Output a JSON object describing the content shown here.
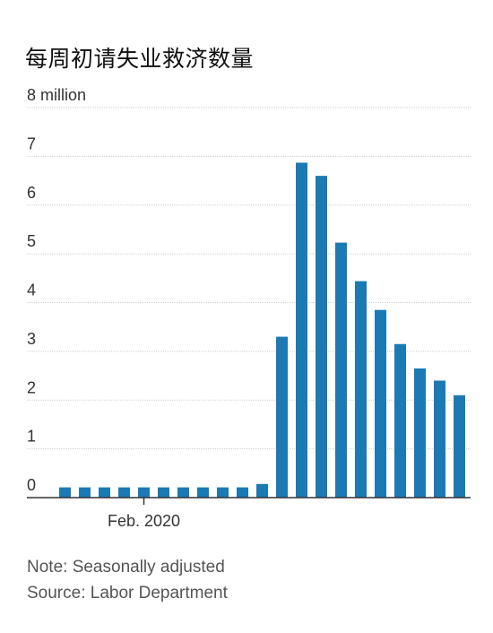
{
  "title": "每周初请失业救济数量",
  "note": "Note: Seasonally adjusted",
  "source": "Source: Labor Department",
  "colors": {
    "bar": "#1b7ab3",
    "grid": "#cfcfcf",
    "axis": "#333333"
  },
  "chart_data": {
    "type": "bar",
    "title": "每周初请失业救济数量",
    "unit": "million",
    "y_tick_labels": [
      "0",
      "1",
      "2",
      "3",
      "4",
      "5",
      "6",
      "7",
      "8 million"
    ],
    "y_ticks": [
      0,
      1,
      2,
      3,
      4,
      5,
      6,
      7,
      8
    ],
    "ylim": [
      0,
      8
    ],
    "x_tick_label": "Feb. 2020",
    "x_tick_index": 4,
    "values": [
      0.21,
      0.21,
      0.21,
      0.21,
      0.21,
      0.21,
      0.21,
      0.21,
      0.21,
      0.21,
      0.28,
      3.3,
      6.87,
      6.6,
      5.23,
      4.44,
      3.85,
      3.15,
      2.65,
      2.4,
      2.1
    ],
    "grid": true
  }
}
